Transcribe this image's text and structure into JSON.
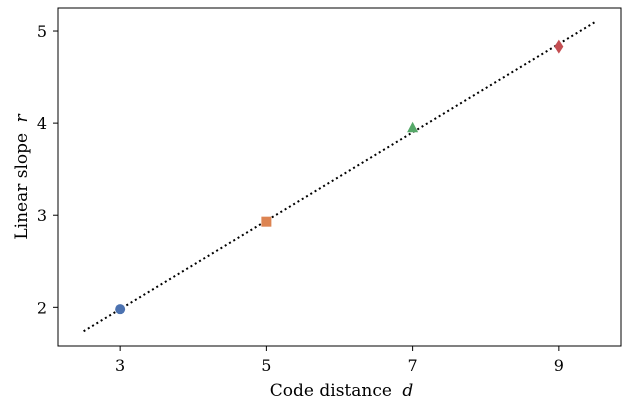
{
  "chart_data": {
    "type": "scatter",
    "title": "",
    "xlabel": "Code distance",
    "xlabel_var": "d",
    "ylabel": "Linear slope",
    "ylabel_var": "r",
    "xlim": [
      2.15,
      9.85
    ],
    "ylim": [
      1.58,
      5.25
    ],
    "xticks": [
      3,
      5,
      7,
      9
    ],
    "yticks": [
      2,
      3,
      4,
      5
    ],
    "grid": false,
    "legend": "none",
    "series": [
      {
        "x": 3,
        "y": 1.98,
        "marker": "circle",
        "color": "#4c72b0"
      },
      {
        "x": 5,
        "y": 2.93,
        "marker": "square",
        "color": "#dd8452"
      },
      {
        "x": 7,
        "y": 3.95,
        "marker": "triangle",
        "color": "#55a868"
      },
      {
        "x": 9,
        "y": 4.83,
        "marker": "diamond",
        "color": "#c44e52"
      }
    ],
    "fit_line": {
      "style": "dotted",
      "color": "#000000",
      "x": [
        2.5,
        9.5
      ],
      "y": [
        1.74,
        5.1
      ]
    }
  }
}
